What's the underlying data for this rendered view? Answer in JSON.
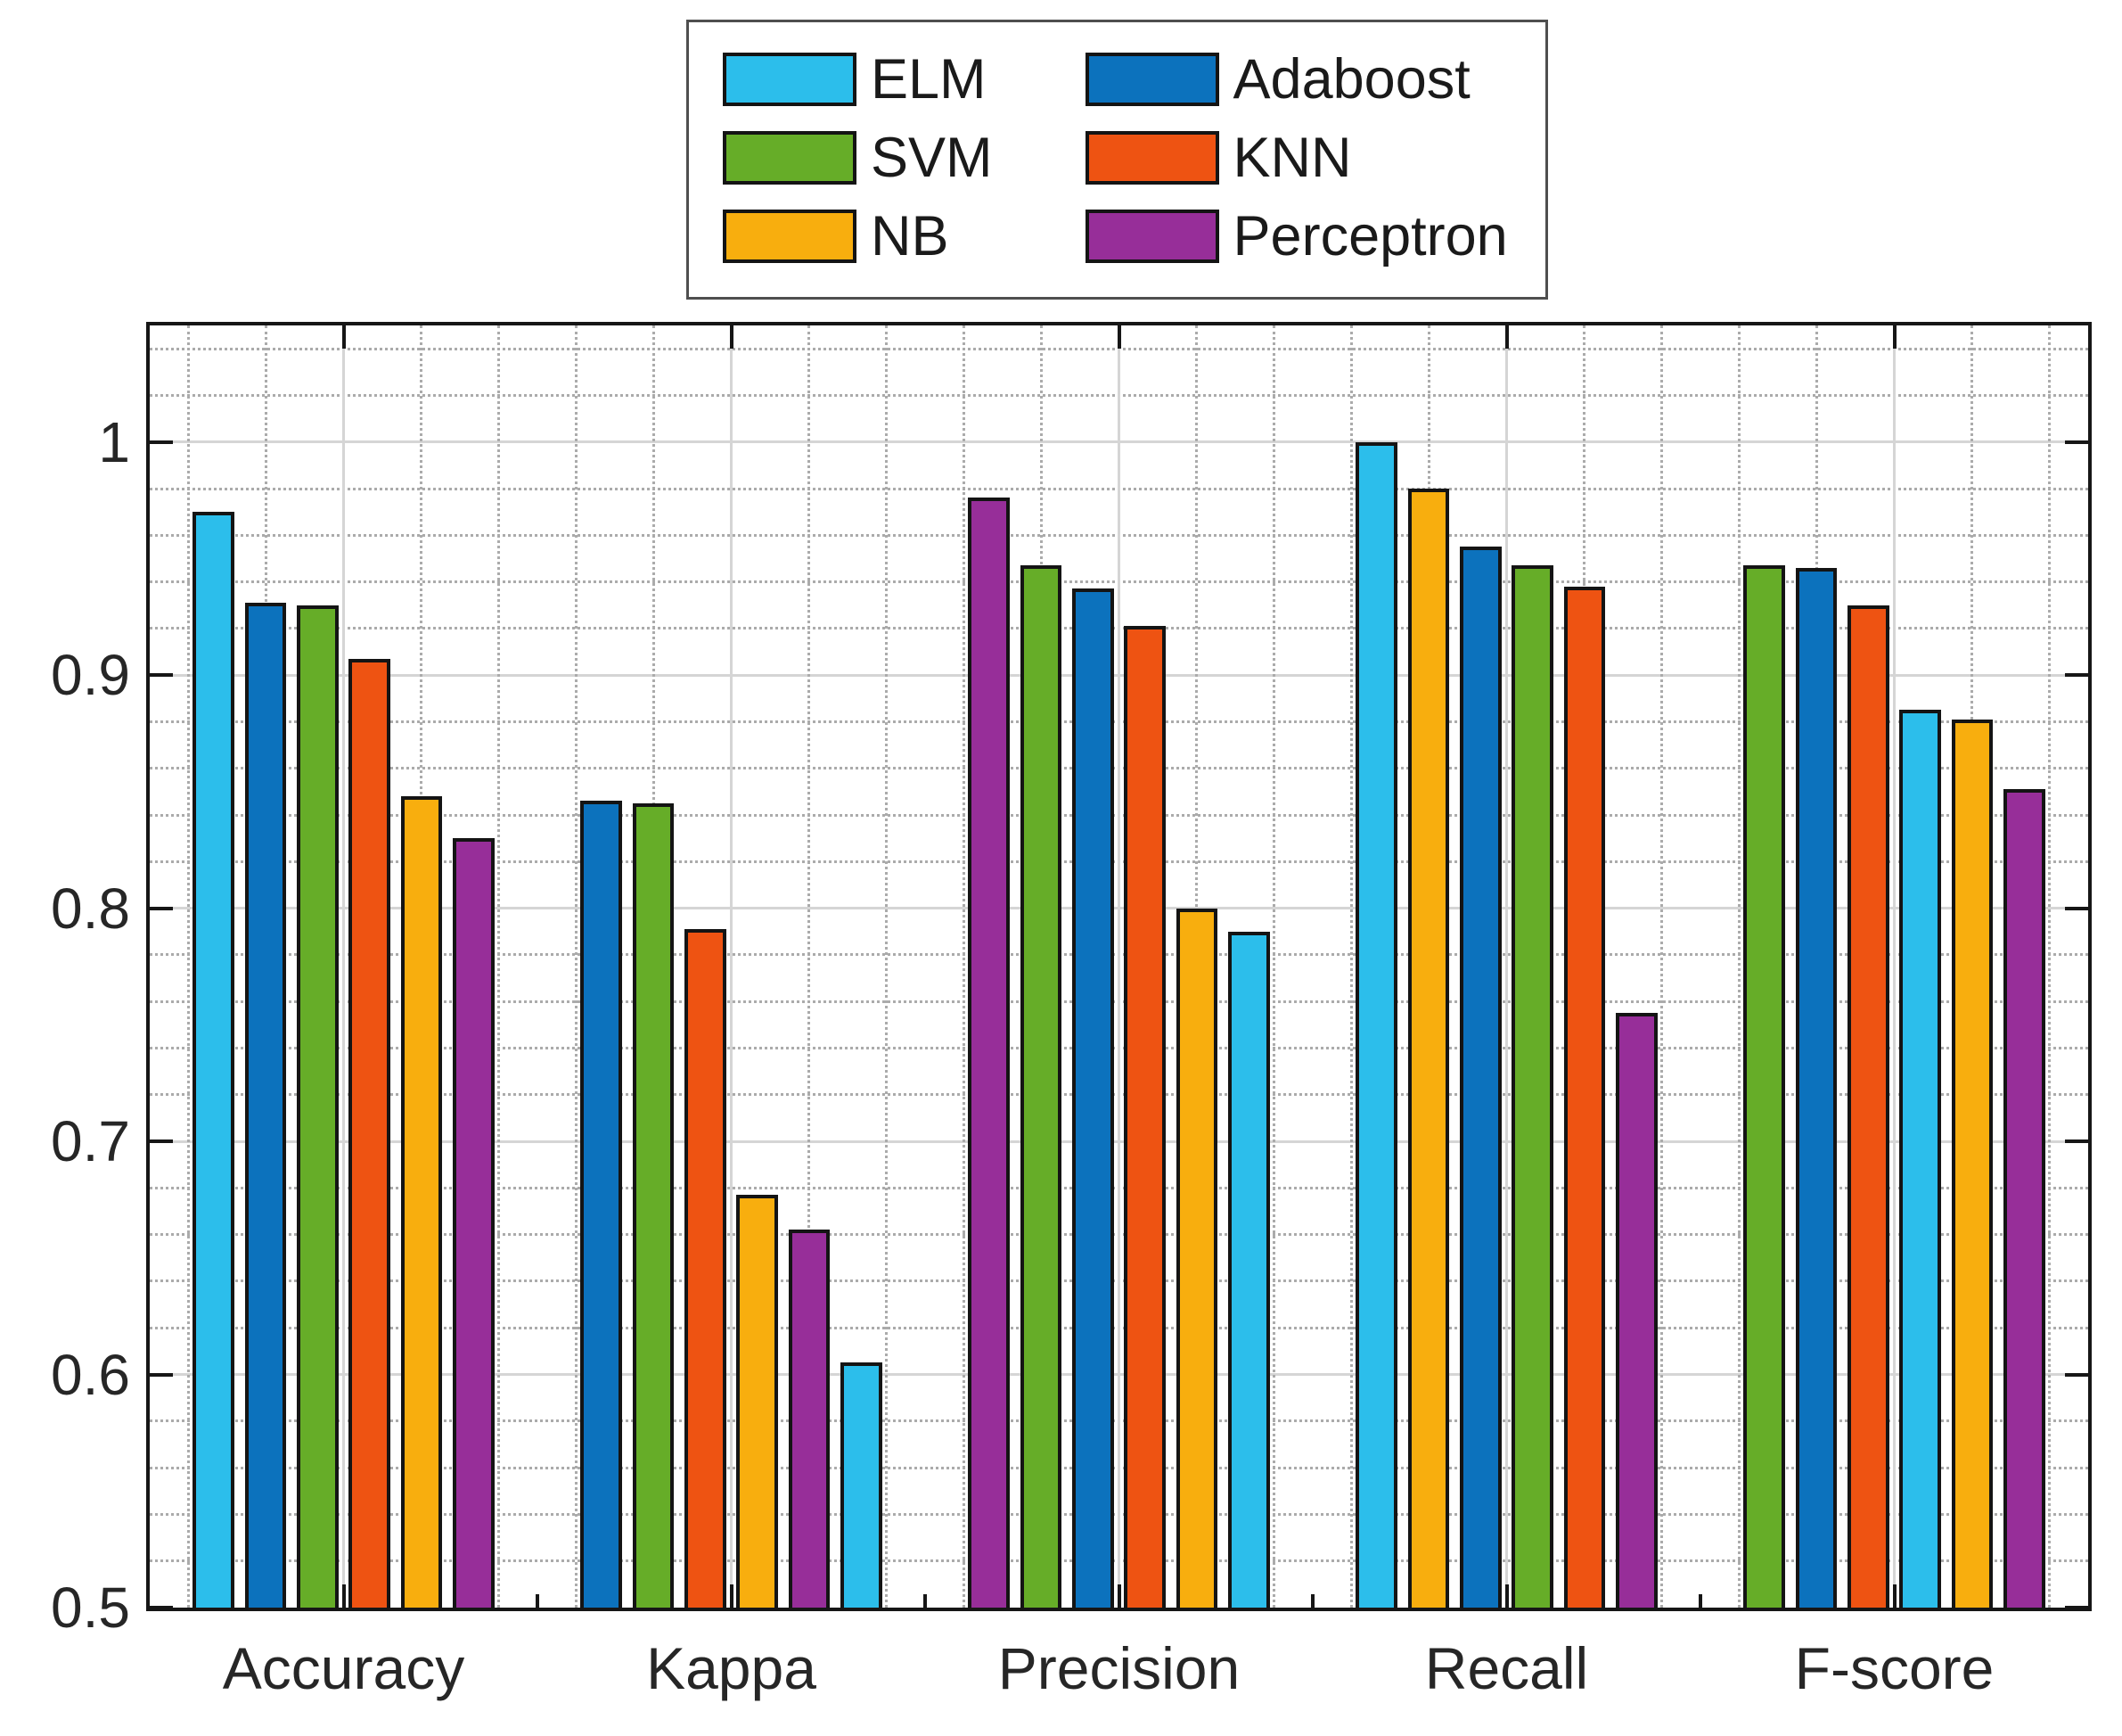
{
  "figure": {
    "background": "#ffffff",
    "axis_color": "#161616",
    "grid_major_color": "#d5d5d5",
    "grid_minor_color": "#ababab",
    "text_color": "#262626"
  },
  "legend": {
    "position": "top-center",
    "columns": 2,
    "column_order": [
      [
        "ELM",
        "SVM",
        "NB"
      ],
      [
        "Adaboost",
        "KNN",
        "Perceptron"
      ]
    ]
  },
  "chart_data": {
    "type": "bar",
    "title": "",
    "xlabel": "",
    "ylabel": "",
    "categories": [
      "Accuracy",
      "Kappa",
      "Precision",
      "Recall",
      "F-score"
    ],
    "series": [
      {
        "name": "ELM",
        "color": "#2CBEEB",
        "values": [
          0.97,
          0.605,
          0.79,
          1.0,
          0.885
        ]
      },
      {
        "name": "SVM",
        "color": "#66AD28",
        "values": [
          0.93,
          0.845,
          0.947,
          0.947,
          0.947
        ]
      },
      {
        "name": "NB",
        "color": "#F8AE0E",
        "values": [
          0.848,
          0.677,
          0.8,
          0.98,
          0.881
        ]
      },
      {
        "name": "Adaboost",
        "color": "#0C72BD",
        "values": [
          0.931,
          0.846,
          0.937,
          0.955,
          0.946
        ]
      },
      {
        "name": "KNN",
        "color": "#EE5312",
        "values": [
          0.907,
          0.791,
          0.921,
          0.938,
          0.93
        ]
      },
      {
        "name": "Perceptron",
        "color": "#972E99",
        "values": [
          0.83,
          0.662,
          0.976,
          0.755,
          0.851
        ]
      }
    ],
    "bar_sort": "descending within each category",
    "ylim": [
      0.5,
      1.05
    ],
    "yticks": [
      0.5,
      0.6,
      0.7,
      0.8,
      0.9,
      1.0
    ],
    "ytick_labels": [
      "0.5",
      "0.6",
      "0.7",
      "0.8",
      "0.9",
      "1"
    ],
    "y_minor_step": 0.02,
    "x_minor_step": 0.2,
    "grid": {
      "major": "solid",
      "minor": "dotted",
      "both_axes": true
    },
    "legend_position": "top-center"
  }
}
